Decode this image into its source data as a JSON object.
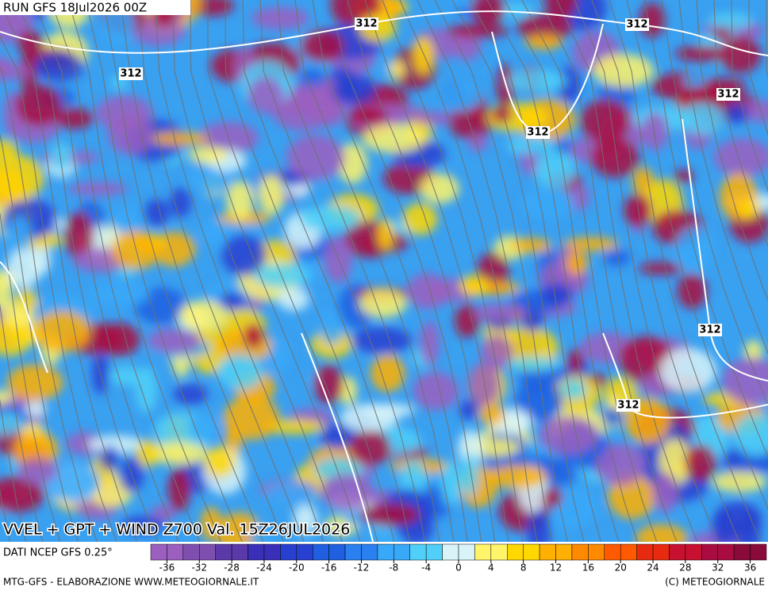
{
  "header": {
    "run": "RUN GFS 18Jul2026 00Z"
  },
  "contour_labels": [
    "312",
    "312",
    "312",
    "312",
    "312",
    "312",
    "312"
  ],
  "title": "VVEL + GPT + WIND Z700 Val. 15Z26JUL2026",
  "source": "DATI NCEP GFS 0.25°",
  "colorbar": {
    "lim": [
      -38,
      38
    ],
    "ticks": [
      -36,
      -32,
      -28,
      -24,
      -20,
      -16,
      -12,
      -8,
      -4,
      0,
      4,
      8,
      12,
      16,
      20,
      24,
      28,
      32,
      36
    ],
    "colors": [
      "#9b5fc0",
      "#7f4fb0",
      "#5a3aa8",
      "#3a2fb8",
      "#2840d0",
      "#1f5fe0",
      "#2a80f0",
      "#38a8f8",
      "#50d0f8",
      "#d8f4f8",
      "#fff46a",
      "#ffd800",
      "#ffb000",
      "#ff8a00",
      "#ff5a00",
      "#e82a10",
      "#c81030",
      "#a80c40",
      "#8a0a3a"
    ]
  },
  "footer": {
    "left": "MTG-GFS - ELABORAZIONE WWW.METEOGIORNALE.IT",
    "right": "(C) METEOGIORNALE"
  }
}
